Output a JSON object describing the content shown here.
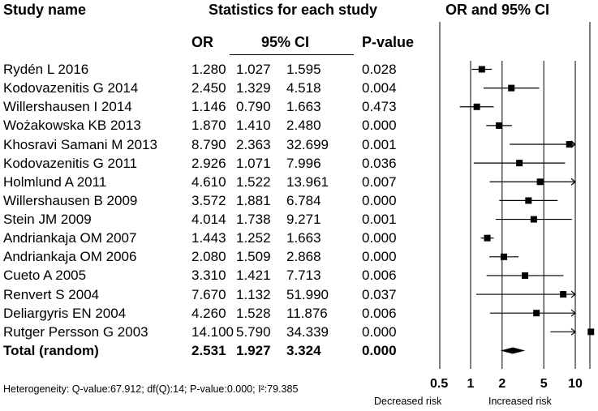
{
  "headers": {
    "study_name": "Study name",
    "stats": "Statistics for each study",
    "or_ci": "OR and 95% CI",
    "or": "OR",
    "ci": "95% CI",
    "p_value": "P-value"
  },
  "chart_data": {
    "type": "forest",
    "title": "OR and 95% CI",
    "x_scale": "log",
    "x_ticks": [
      0.5,
      1,
      2,
      5,
      10
    ],
    "x_tick_labels": [
      "0.5",
      "1",
      "2",
      "5",
      "10"
    ],
    "xlim": [
      0.5,
      10
    ],
    "reference_line": 1,
    "left_label": "Decreased risk",
    "right_label": "Increased risk",
    "studies": [
      {
        "name": "Rydén L 2016",
        "or": "1.280",
        "lower": "1.027",
        "upper": "1.595",
        "p": "0.028"
      },
      {
        "name": "Kodovazenitis G 2014",
        "or": "2.450",
        "lower": "1.329",
        "upper": "4.518",
        "p": "0.004"
      },
      {
        "name": "Willershausen I 2014",
        "or": "1.146",
        "lower": "0.790",
        "upper": "1.663",
        "p": "0.473"
      },
      {
        "name": "Wożakowska KB 2013",
        "or": "1.870",
        "lower": "1.410",
        "upper": "2.480",
        "p": "0.000"
      },
      {
        "name": "Khosravi Samani M 2013",
        "or": "8.790",
        "lower": "2.363",
        "upper": "32.699",
        "p": "0.001"
      },
      {
        "name": "Kodovazenitis G 2011",
        "or": "2.926",
        "lower": "1.071",
        "upper": "7.996",
        "p": "0.036"
      },
      {
        "name": "Holmlund A 2011",
        "or": "4.610",
        "lower": "1.522",
        "upper": "13.961",
        "p": "0.007"
      },
      {
        "name": "Willershausen B 2009",
        "or": "3.572",
        "lower": "1.881",
        "upper": "6.784",
        "p": "0.000"
      },
      {
        "name": "Stein JM 2009",
        "or": "4.014",
        "lower": "1.738",
        "upper": "9.271",
        "p": "0.001"
      },
      {
        "name": "Andriankaja OM 2007",
        "or": "1.443",
        "lower": "1.252",
        "upper": "1.663",
        "p": "0.000"
      },
      {
        "name": "Andriankaja OM 2006",
        "or": "2.080",
        "lower": "1.509",
        "upper": "2.868",
        "p": "0.000"
      },
      {
        "name": "Cueto A 2005",
        "or": "3.310",
        "lower": "1.421",
        "upper": "7.713",
        "p": "0.006"
      },
      {
        "name": "Renvert S 2004",
        "or": "7.670",
        "lower": "1.132",
        "upper": "51.990",
        "p": "0.037"
      },
      {
        "name": "Deliargyris EN 2004",
        "or": "4.260",
        "lower": "1.528",
        "upper": "11.876",
        "p": "0.006"
      },
      {
        "name": "Rutger Persson G 2003",
        "or": "14.100",
        "lower": "5.790",
        "upper": "34.339",
        "p": "0.000"
      }
    ],
    "total": {
      "name": "Total (random)",
      "or": "2.531",
      "lower": "1.927",
      "upper": "3.324",
      "p": "0.000"
    }
  },
  "heterogeneity": "Heterogeneity:  Q-value:67.912; df(Q):14; P-value:0.000; I²:79.385"
}
